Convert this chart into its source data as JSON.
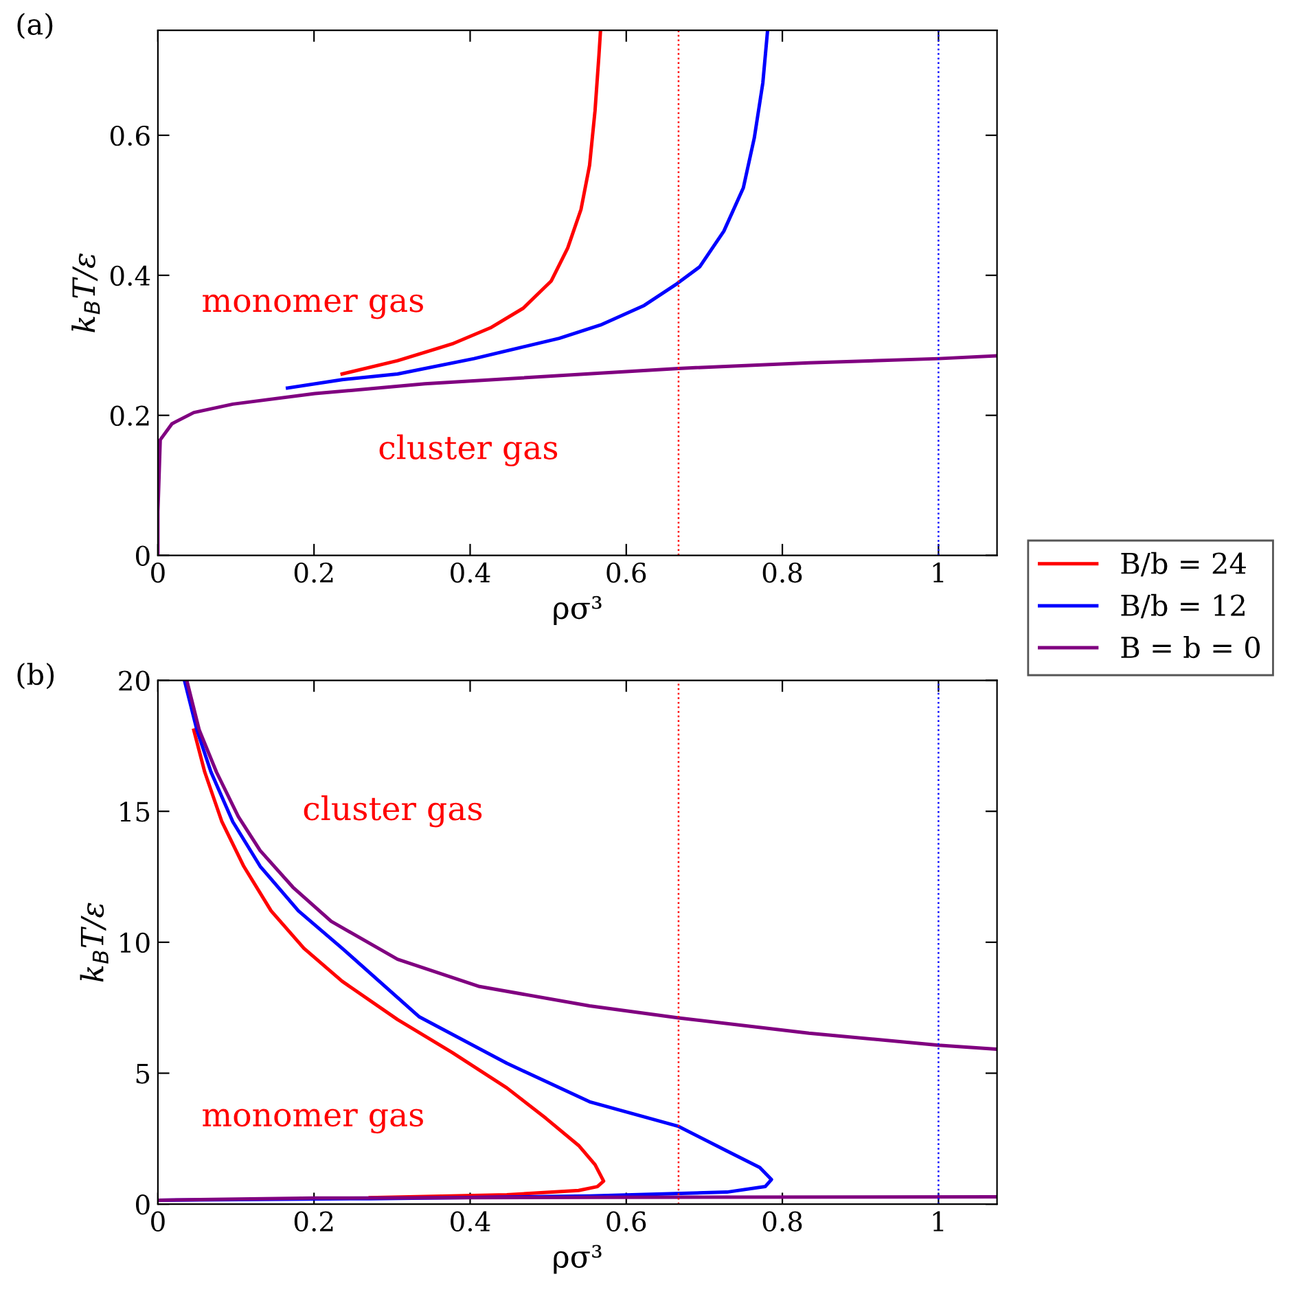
{
  "chart_data": [
    {
      "type": "line",
      "title": "(a)",
      "xlabel": "ρσ³",
      "ylabel": "k$_{B}$T/ε",
      "xlim": [
        0,
        1.075
      ],
      "ylim": [
        0,
        0.75
      ],
      "xticks": [
        0,
        0.2,
        0.4,
        0.6,
        0.8,
        1
      ],
      "yticks": [
        0,
        0.2,
        0.4,
        0.6
      ],
      "grid": false,
      "legend": "right",
      "marker": "none",
      "line_style": "solid",
      "series": [
        {
          "name": "B/b = 24",
          "color": "#ff0000",
          "x": [
            0.236,
            0.307,
            0.377,
            0.426,
            0.468,
            0.504,
            0.525,
            0.542,
            0.553,
            0.56,
            0.565,
            0.567
          ],
          "values": [
            0.259,
            0.278,
            0.302,
            0.325,
            0.353,
            0.392,
            0.439,
            0.494,
            0.557,
            0.635,
            0.714,
            0.749
          ]
        },
        {
          "name": "B/b = 12",
          "color": "#0000ff",
          "x": [
            0.166,
            0.236,
            0.307,
            0.405,
            0.514,
            0.567,
            0.623,
            0.665,
            0.694,
            0.725,
            0.75,
            0.764,
            0.775,
            0.781
          ],
          "values": [
            0.239,
            0.251,
            0.259,
            0.281,
            0.31,
            0.329,
            0.357,
            0.388,
            0.412,
            0.463,
            0.525,
            0.596,
            0.675,
            0.749
          ]
        },
        {
          "name": "B = b = 0",
          "color": "#800080",
          "x": [
            0,
            0,
            0.003,
            0.018,
            0.046,
            0.096,
            0.201,
            0.342,
            0.563,
            0.667,
            0.834,
            1.0,
            1.074
          ],
          "values": [
            0,
            0.063,
            0.165,
            0.188,
            0.204,
            0.216,
            0.231,
            0.245,
            0.26,
            0.267,
            0.275,
            0.281,
            0.285
          ]
        }
      ],
      "ref_lines": [
        {
          "axis": "x",
          "value": 0.667,
          "color": "#ff0000",
          "line_style": "dotted"
        },
        {
          "axis": "x",
          "value": 1,
          "color": "#0000ff",
          "line_style": "dotted"
        }
      ],
      "annotations": [
        "monomer gas",
        "cluster gas"
      ]
    },
    {
      "type": "line",
      "title": "(b)",
      "xlabel": "ρσ³",
      "ylabel": "k$_{B}$T/ε",
      "xlim": [
        0,
        1.075
      ],
      "ylim": [
        0,
        20
      ],
      "xticks": [
        0,
        0.2,
        0.4,
        0.6,
        0.8,
        1
      ],
      "yticks": [
        0,
        5,
        10,
        15,
        20
      ],
      "grid": false,
      "legend": false,
      "marker": "none",
      "line_style": "solid",
      "series": [
        {
          "color": "#ff0000",
          "x": [
            0.046,
            0.06,
            0.082,
            0.11,
            0.145,
            0.187,
            0.236,
            0.307,
            0.377,
            0.447,
            0.497,
            0.539,
            0.56,
            0.571,
            0.563,
            0.539,
            0.447,
            0.272
          ],
          "values": [
            18.1,
            16.5,
            14.6,
            12.9,
            11.2,
            9.77,
            8.51,
            7.05,
            5.79,
            4.44,
            3.28,
            2.24,
            1.51,
            0.88,
            0.67,
            0.52,
            0.36,
            0.25
          ]
        },
        {
          "color": "#0000ff",
          "x": [
            0.034,
            0.05,
            0.068,
            0.096,
            0.131,
            0.18,
            0.236,
            0.335,
            0.447,
            0.553,
            0.667,
            0.729,
            0.771,
            0.786,
            0.778,
            0.729,
            0.553,
            0.272,
            0
          ],
          "values": [
            20,
            18.1,
            16.5,
            14.6,
            12.9,
            11.2,
            9.77,
            7.15,
            5.38,
            3.91,
            2.97,
            2.03,
            1.4,
            0.94,
            0.67,
            0.46,
            0.31,
            0.21,
            0.15
          ]
        },
        {
          "color": "#800080",
          "x": [
            0.037,
            0.053,
            0.075,
            0.103,
            0.131,
            0.173,
            0.222,
            0.307,
            0.412,
            0.553,
            0.667,
            0.834,
            1.0,
            1.074,
            null,
            0,
            0.2,
            0.563,
            1.074
          ],
          "values": [
            20,
            18.1,
            16.5,
            14.8,
            13.5,
            12.1,
            10.8,
            9.35,
            8.31,
            7.57,
            7.11,
            6.53,
            6.07,
            5.92,
            null,
            0.15,
            0.23,
            0.26,
            0.28
          ]
        }
      ],
      "ref_lines": [
        {
          "axis": "x",
          "value": 0.667,
          "color": "#ff0000",
          "line_style": "dotted"
        },
        {
          "axis": "x",
          "value": 1,
          "color": "#0000ff",
          "line_style": "dotted"
        }
      ],
      "annotations": [
        "cluster gas",
        "monomer gas"
      ]
    }
  ]
}
